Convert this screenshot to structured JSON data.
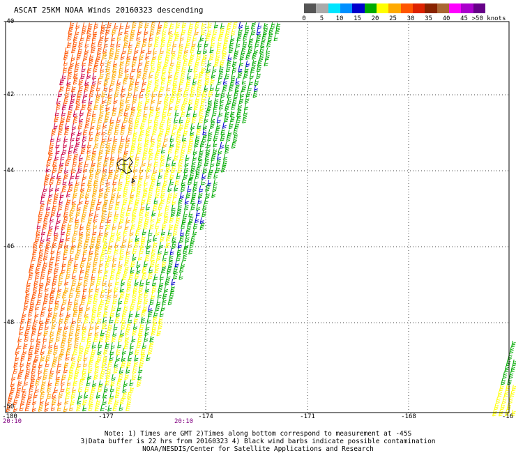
{
  "title": "ASCAT 25KM NOAA Winds 20160323 descending",
  "legend": {
    "colors": [
      "#555555",
      "#aaaaaa",
      "#00e5ff",
      "#0090ff",
      "#0000cc",
      "#00aa00",
      "#ffff00",
      "#ffaa00",
      "#ff5500",
      "#dd2200",
      "#882200",
      "#aa6633",
      "#ff00ff",
      "#aa00cc",
      "#660088"
    ],
    "labels": [
      "0",
      "5",
      "10",
      "15",
      "20",
      "25",
      "30",
      "35",
      "40",
      "45",
      ">50 knots"
    ]
  },
  "axes": {
    "lat_labels": [
      "-40",
      "-42",
      "-44",
      "-46",
      "-48",
      "-50"
    ],
    "lon_labels": [
      "-180",
      "-177",
      "-174",
      "-171",
      "-168",
      "-16"
    ]
  },
  "time_labels": [
    "20:10",
    "20:10"
  ],
  "notes": [
    "Note: 1) Times are GMT 2)Times along bottom correspond to measurement at -45S",
    "3)Data buffer is 22 hrs from 20160323 4) Black wind barbs indicate possible contamination",
    "NOAA/NESDIS/Center for Satellite Applications and Research"
  ],
  "swath_colors": {
    "green": "#00aa00",
    "blue": "#0000cc",
    "yellow": "#ffff00",
    "orange": "#ffaa00",
    "red_orange": "#ff5500",
    "crimson": "#cc0044"
  }
}
